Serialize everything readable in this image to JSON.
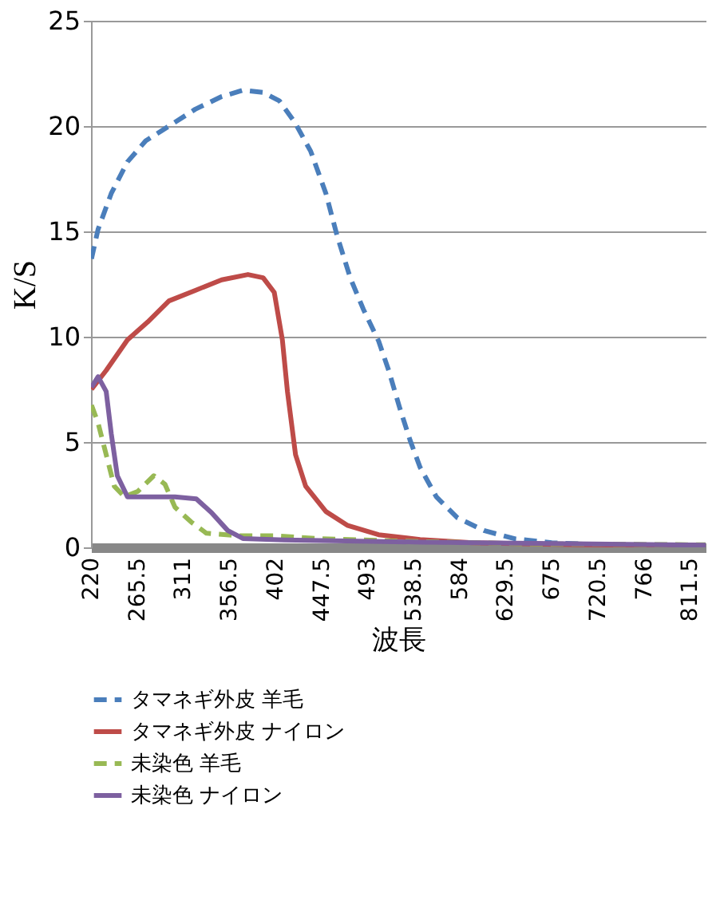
{
  "chart_data": {
    "type": "line",
    "xlabel": "波長",
    "ylabel": "K/S",
    "xlim": [
      220,
      827
    ],
    "xticks": [
      220,
      265.5,
      311,
      356.5,
      402,
      447.5,
      493,
      538.5,
      584,
      629.5,
      675,
      720.5,
      766,
      811.5
    ],
    "ylim": [
      0,
      25
    ],
    "yticks": [
      0,
      5,
      10,
      15,
      20,
      25
    ],
    "grid": "y",
    "legend": "bottom",
    "marker": "none",
    "series": [
      {
        "name": "タマネギ外皮  羊毛",
        "color": "#4a7ebb",
        "line_style": "dashed",
        "x": [
          220.5,
          227,
          240,
          256,
          274,
          297,
          323,
          349,
          370,
          390,
          406,
          421,
          437,
          452,
          463,
          476,
          489,
          504,
          514,
          525,
          535,
          545,
          561,
          582,
          608,
          639,
          675,
          727,
          827
        ],
        "values": [
          13.7,
          15.1,
          16.8,
          18.3,
          19.3,
          20.0,
          20.8,
          21.4,
          21.7,
          21.6,
          21.2,
          20.2,
          18.8,
          16.8,
          14.8,
          12.8,
          11.3,
          9.8,
          8.4,
          6.6,
          5.1,
          3.8,
          2.4,
          1.4,
          0.8,
          0.4,
          0.22,
          0.12,
          0.1
        ]
      },
      {
        "name": "タマネギ外皮  ナイロン",
        "color": "#be4b48",
        "line_style": "solid",
        "x": [
          220.5,
          235,
          256,
          276,
          297,
          323,
          349,
          375,
          390,
          401,
          409,
          414,
          422,
          432,
          452,
          473,
          504,
          545,
          597,
          701,
          827
        ],
        "values": [
          7.5,
          8.4,
          9.85,
          10.7,
          11.7,
          12.2,
          12.7,
          12.95,
          12.8,
          12.1,
          9.85,
          7.4,
          4.4,
          2.9,
          1.7,
          1.05,
          0.6,
          0.37,
          0.22,
          0.12,
          0.1
        ]
      },
      {
        "name": "未染色  羊毛",
        "color": "#98b954",
        "line_style": "dashed",
        "x": [
          220.5,
          227,
          235,
          243,
          253,
          266,
          282,
          293,
          303,
          319,
          334,
          365,
          402,
          442,
          520,
          649,
          827
        ],
        "values": [
          6.75,
          5.9,
          4.4,
          2.9,
          2.4,
          2.65,
          3.4,
          3.0,
          1.9,
          1.2,
          0.67,
          0.55,
          0.55,
          0.42,
          0.3,
          0.17,
          0.12
        ]
      },
      {
        "name": "未染色  ナイロン",
        "color": "#7d60a0",
        "line_style": "solid",
        "x": [
          220.5,
          227,
          235,
          240,
          246,
          256,
          276,
          303,
          324,
          339,
          355,
          370,
          411,
          546,
          827
        ],
        "values": [
          7.6,
          8.1,
          7.4,
          5.4,
          3.4,
          2.4,
          2.4,
          2.4,
          2.3,
          1.65,
          0.8,
          0.42,
          0.35,
          0.25,
          0.1
        ]
      }
    ]
  }
}
